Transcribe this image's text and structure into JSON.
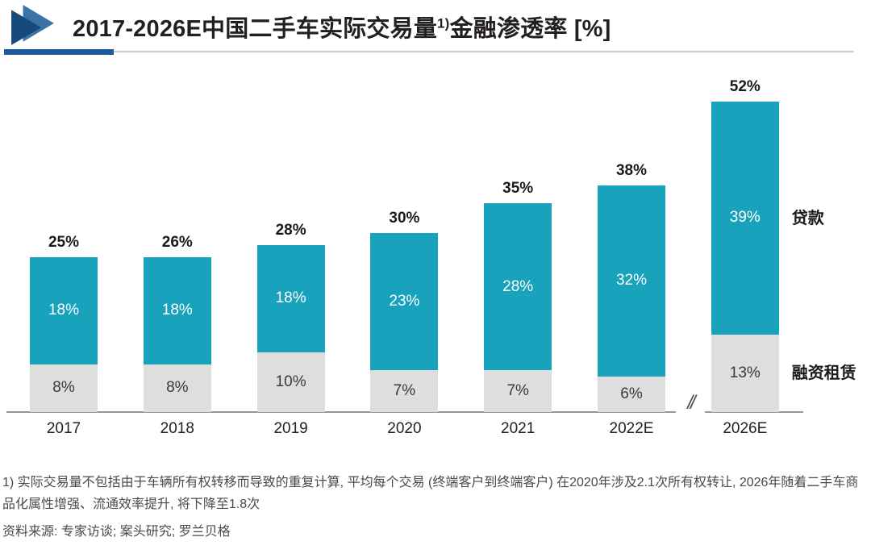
{
  "header": {
    "title_prefix": "2017-2026E中国二手车实际交易量",
    "title_superscript": "1)",
    "title_suffix": "金融渗透率 [%]",
    "accent_dark": "#1d5a9b",
    "accent_light": "#c3d0e2"
  },
  "chart_data": {
    "type": "bar",
    "subtype": "stacked",
    "title": "2017-2026E中国二手车实际交易量金融渗透率 [%]",
    "categories": [
      "2017",
      "2018",
      "2019",
      "2020",
      "2021",
      "2022E",
      "2026E"
    ],
    "series": [
      {
        "id": "lease",
        "name": "融资租赁",
        "color": "#dedede",
        "label_color": "#3a3a3a",
        "values": [
          8,
          8,
          10,
          7,
          7,
          6,
          13
        ]
      },
      {
        "id": "loan",
        "name": "贷款",
        "color": "#18a2bc",
        "label_color": "#ffffff",
        "values": [
          18,
          18,
          18,
          23,
          28,
          32,
          39
        ]
      }
    ],
    "totals": [
      25,
      26,
      28,
      30,
      35,
      38,
      52
    ],
    "unit": "%",
    "xlabel": "",
    "ylabel": "",
    "grid": false,
    "legend_position": "right",
    "axis_break_between": [
      "2022E",
      "2026E"
    ],
    "axis_break_symbol": "//"
  },
  "footnote": "1) 实际交易量不包括由于车辆所有权转移而导致的重复计算, 平均每个交易 (终端客户到终端客户) 在2020年涉及2.1次所有权转让, 2026年随着二手车商品化属性增强、流通效率提升, 将下降至1.8次",
  "source": "资料来源: 专家访谈; 案头研究; 罗兰贝格"
}
